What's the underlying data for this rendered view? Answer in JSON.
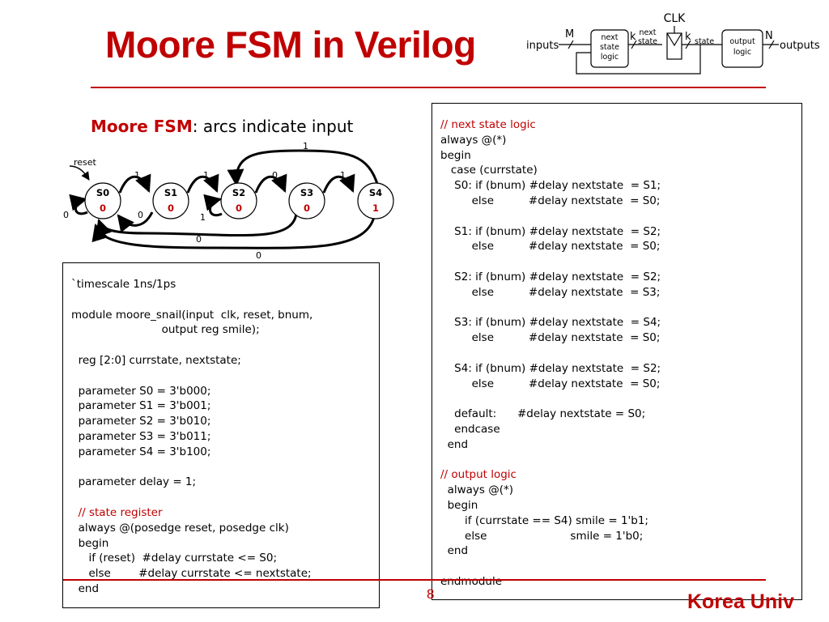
{
  "slide": {
    "title": "Moore FSM in Verilog",
    "page_number": "8",
    "brand": "Korea Univ"
  },
  "block_diagram": {
    "inputs_label": "inputs",
    "m_label": "M",
    "next_state_logic_line1": "next",
    "next_state_logic_line2": "state",
    "next_state_logic_line3": "logic",
    "k_label_1": "k",
    "next_state_line1": "next",
    "next_state_line2": "state",
    "clk_label": "CLK",
    "k_label_2": "k",
    "state_label": "state",
    "output_logic_line1": "output",
    "output_logic_line2": "logic",
    "n_label": "N",
    "outputs_label": "outputs"
  },
  "fsm": {
    "heading_bold": "Moore FSM",
    "heading_rest": ": arcs indicate input",
    "reset_label": "reset",
    "states": [
      {
        "name": "S0",
        "output": "0"
      },
      {
        "name": "S1",
        "output": "0"
      },
      {
        "name": "S2",
        "output": "0"
      },
      {
        "name": "S3",
        "output": "0"
      },
      {
        "name": "S4",
        "output": "1"
      }
    ],
    "arc_labels": {
      "s0_self": "0",
      "s0_to_s1": "1",
      "s1_to_s0": "0",
      "s1_to_s2": "1",
      "s2_self": "1",
      "s2_to_s3": "0",
      "s3_to_s4": "1",
      "s3_to_s0": "0",
      "s4_to_s2": "1",
      "s4_to_s0": "0"
    }
  },
  "code_left": {
    "l01": "`timescale 1ns/1ps",
    "l02": "",
    "l03": "module moore_snail(input  clk, reset, bnum,",
    "l04": "                          output reg smile);",
    "l05": "",
    "l06": "  reg [2:0] currstate, nextstate;",
    "l07": "",
    "l08": "  parameter S0 = 3'b000;",
    "l09": "  parameter S1 = 3'b001;",
    "l10": "  parameter S2 = 3'b010;",
    "l11": "  parameter S3 = 3'b011;",
    "l12": "  parameter S4 = 3'b100;",
    "l13": "",
    "l14": "  parameter delay = 1;",
    "l15": "",
    "l16": "  // state register",
    "l17": "  always @(posedge reset, posedge clk)",
    "l18": "  begin",
    "l19": "     if (reset)  #delay currstate <= S0;",
    "l20": "     else        #delay currstate <= nextstate;",
    "l21": "  end"
  },
  "code_right": {
    "l01": "// next state logic",
    "l02": "always @(*)",
    "l03": "begin",
    "l04": "   case (currstate)",
    "l05": "    S0: if (bnum) #delay nextstate  = S1;",
    "l06": "         else          #delay nextstate  = S0;",
    "l07": "",
    "l08": "    S1: if (bnum) #delay nextstate  = S2;",
    "l09": "         else          #delay nextstate  = S0;",
    "l10": "",
    "l11": "    S2: if (bnum) #delay nextstate  = S2;",
    "l12": "         else          #delay nextstate  = S3;",
    "l13": "",
    "l14": "    S3: if (bnum) #delay nextstate  = S4;",
    "l15": "         else          #delay nextstate  = S0;",
    "l16": "",
    "l17": "    S4: if (bnum) #delay nextstate  = S2;",
    "l18": "         else          #delay nextstate  = S0;",
    "l19": "",
    "l20": "    default:      #delay nextstate = S0;",
    "l21": "    endcase",
    "l22": "  end",
    "l23": "",
    "l24": "// output logic",
    "l25": "  always @(*)",
    "l26": "  begin",
    "l27": "       if (currstate == S4) smile = 1'b1;",
    "l28": "       else                        smile = 1'b0;",
    "l29": "  end",
    "l30": "",
    "l31": "endmodule"
  },
  "colors": {
    "accent_red": "#c00000",
    "text": "#000000"
  }
}
